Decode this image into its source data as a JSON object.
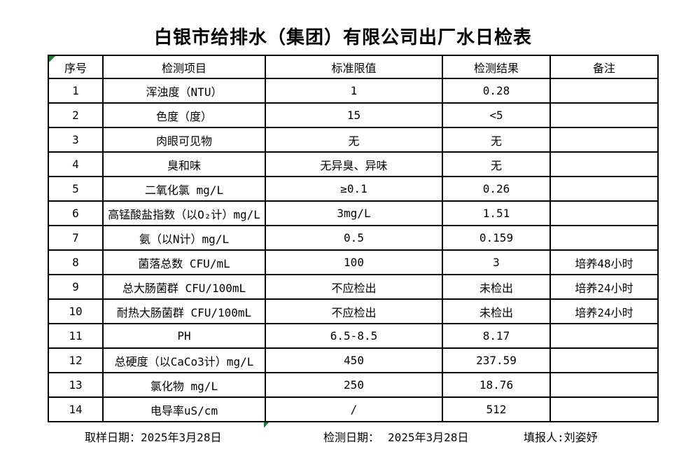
{
  "page": {
    "title": "白银市给排水（集团）有限公司出厂水日检表"
  },
  "colors": {
    "border": "#000000",
    "marker_green": "#1e7e34",
    "background": "#ffffff"
  },
  "table": {
    "headers": {
      "no": "序号",
      "item": "检测项目",
      "standard": "标准限值",
      "result": "检测结果",
      "remark": "备注"
    },
    "rows": [
      {
        "no": "1",
        "item": "浑浊度（NTU）",
        "standard": "1",
        "result": "0.28",
        "remark": ""
      },
      {
        "no": "2",
        "item": "色度（度）",
        "standard": "15",
        "result": "<5",
        "remark": ""
      },
      {
        "no": "3",
        "item": "肉眼可见物",
        "standard": "无",
        "result": "无",
        "remark": ""
      },
      {
        "no": "4",
        "item": "臭和味",
        "standard": "无异臭、异味",
        "result": "无",
        "remark": ""
      },
      {
        "no": "5",
        "item": "二氧化氯 mg/L",
        "standard": "≥0.1",
        "result": "0.26",
        "remark": ""
      },
      {
        "no": "6",
        "item": "高锰酸盐指数（以O₂计）mg/L",
        "standard": "3mg/L",
        "result": "1.51",
        "remark": ""
      },
      {
        "no": "7",
        "item": "氨（以N计）mg/L",
        "standard": "0.5",
        "result": "0.159",
        "remark": ""
      },
      {
        "no": "8",
        "item": "菌落总数 CFU/mL",
        "standard": "100",
        "result": "3",
        "remark": "培养48小时"
      },
      {
        "no": "9",
        "item": "总大肠菌群 CFU/100mL",
        "standard": "不应检出",
        "result": "未检出",
        "remark": "培养24小时"
      },
      {
        "no": "10",
        "item": "耐热大肠菌群 CFU/100mL",
        "standard": "不应检出",
        "result": "未检出",
        "remark": "培养24小时"
      },
      {
        "no": "11",
        "item": "PH",
        "standard": "6.5-8.5",
        "result": "8.17",
        "remark": ""
      },
      {
        "no": "12",
        "item": "总硬度（以CaCo3计）mg/L",
        "standard": "450",
        "result": "237.59",
        "remark": ""
      },
      {
        "no": "13",
        "item": "氯化物 mg/L",
        "standard": "250",
        "result": "18.76",
        "remark": ""
      },
      {
        "no": "14",
        "item": "电导率uS/cm",
        "standard": "/",
        "result": "512",
        "remark": ""
      }
    ]
  },
  "footer": {
    "sampling_date_label": "取样日期：",
    "sampling_date": "2025年3月28日",
    "test_date_label": "检测日期：",
    "test_date": "2025年3月28日",
    "reporter_label": "填报人:",
    "reporter": "刘姿妤"
  }
}
